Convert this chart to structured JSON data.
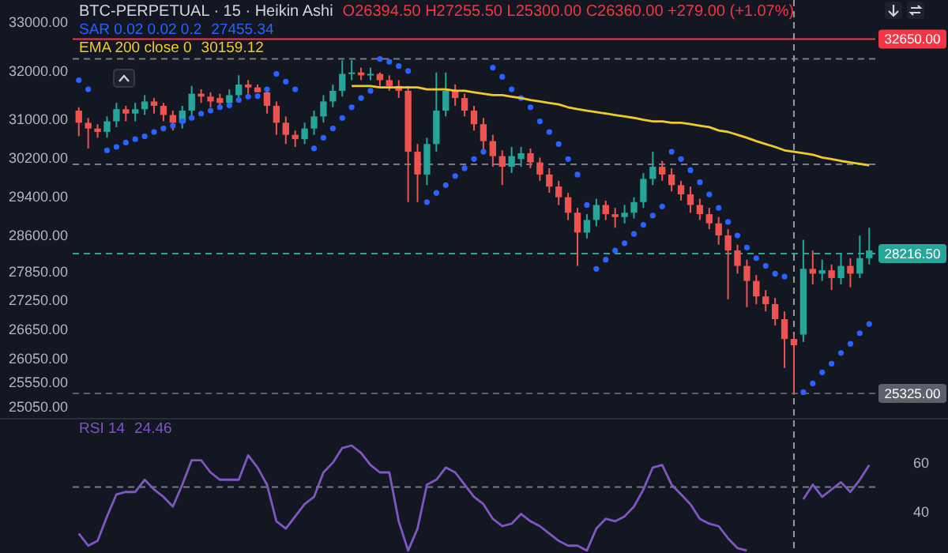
{
  "chart_data": [
    {
      "type": "candlestick",
      "title": "BTC-PERPETUAL · 15 · Heikin Ashi",
      "categories": [
        null,
        null,
        null,
        null,
        null,
        null,
        null,
        null,
        null,
        null,
        null,
        null,
        null,
        null,
        null,
        null,
        null,
        null,
        null,
        null,
        null,
        null,
        null,
        null,
        null,
        null,
        null,
        null,
        null,
        null,
        null,
        null,
        null,
        null,
        null,
        null,
        null,
        null,
        null,
        null,
        null,
        null,
        null,
        null,
        null,
        null,
        null,
        null,
        null,
        null,
        null,
        null,
        null,
        null,
        null,
        null,
        null,
        null,
        null,
        null,
        null,
        null,
        null,
        null,
        null,
        null,
        null,
        null,
        null,
        null,
        null,
        null,
        null,
        null,
        null,
        null,
        null,
        null,
        null,
        null,
        null,
        null,
        null,
        null,
        null
      ],
      "ohlc": [
        [
          31170,
          31240,
          30640,
          30920
        ],
        [
          30920,
          31020,
          30390,
          30800
        ],
        [
          30800,
          30890,
          30610,
          30730
        ],
        [
          30730,
          31050,
          30610,
          30950
        ],
        [
          30950,
          31330,
          30830,
          31200
        ],
        [
          31200,
          31270,
          30950,
          31110
        ],
        [
          31110,
          31330,
          30950,
          31200
        ],
        [
          31200,
          31490,
          31080,
          31360
        ],
        [
          31360,
          31430,
          31110,
          31270
        ],
        [
          31270,
          31330,
          30950,
          31080
        ],
        [
          31080,
          31170,
          30760,
          30920
        ],
        [
          30920,
          31270,
          30800,
          31170
        ],
        [
          31170,
          31680,
          31050,
          31520
        ],
        [
          31520,
          31610,
          31330,
          31460
        ],
        [
          31460,
          31550,
          31240,
          31360
        ],
        [
          31430,
          31520,
          31200,
          31330
        ],
        [
          31330,
          31610,
          31300,
          31490
        ],
        [
          31490,
          31900,
          31420,
          31710
        ],
        [
          31710,
          31800,
          31520,
          31650
        ],
        [
          31650,
          31710,
          31550,
          31550
        ],
        [
          31550,
          31610,
          31110,
          31270
        ],
        [
          31270,
          31360,
          30670,
          30920
        ],
        [
          30920,
          31050,
          30480,
          30670
        ],
        [
          30670,
          30760,
          30420,
          30580
        ],
        [
          30580,
          30920,
          30480,
          30800
        ],
        [
          30800,
          31170,
          30670,
          31050
        ],
        [
          31050,
          31490,
          30920,
          31360
        ],
        [
          31360,
          31710,
          31240,
          31580
        ],
        [
          31580,
          32210,
          31460,
          31930
        ],
        [
          31930,
          32210,
          31800,
          31960
        ],
        [
          31960,
          32060,
          31800,
          31900
        ],
        [
          31900,
          32060,
          31800,
          31930
        ],
        [
          31930,
          31960,
          31680,
          31800
        ],
        [
          31800,
          31900,
          31580,
          31680
        ],
        [
          31680,
          31800,
          31430,
          31580
        ],
        [
          31580,
          31680,
          29280,
          30320
        ],
        [
          30320,
          30480,
          29280,
          29850
        ],
        [
          29850,
          30610,
          29630,
          30480
        ],
        [
          30480,
          31960,
          30320,
          31170
        ],
        [
          31170,
          31960,
          31050,
          31580
        ],
        [
          31580,
          31710,
          31270,
          31430
        ],
        [
          31430,
          31520,
          31050,
          31170
        ],
        [
          31170,
          31270,
          30760,
          30890
        ],
        [
          30890,
          31020,
          30350,
          30540
        ],
        [
          30540,
          30670,
          30010,
          30230
        ],
        [
          30230,
          30350,
          29630,
          30010
        ],
        [
          30010,
          30420,
          29880,
          30230
        ],
        [
          30170,
          30420,
          30010,
          30290
        ],
        [
          30290,
          30390,
          29980,
          30100
        ],
        [
          30100,
          30200,
          29720,
          29850
        ],
        [
          29850,
          29980,
          29470,
          29600
        ],
        [
          29600,
          29720,
          29220,
          29380
        ],
        [
          29380,
          29470,
          28910,
          29060
        ],
        [
          29060,
          29160,
          27960,
          28650
        ],
        [
          28650,
          29030,
          28530,
          28910
        ],
        [
          28910,
          29350,
          28780,
          29220
        ],
        [
          29220,
          29310,
          28910,
          29030
        ],
        [
          29030,
          29160,
          28750,
          28970
        ],
        [
          28970,
          29220,
          28840,
          29060
        ],
        [
          29060,
          29380,
          28940,
          29280
        ],
        [
          29280,
          29880,
          29160,
          29760
        ],
        [
          29760,
          30320,
          29630,
          30010
        ],
        [
          30010,
          30130,
          29720,
          29850
        ],
        [
          29850,
          29980,
          29500,
          29630
        ],
        [
          29630,
          29720,
          29310,
          29440
        ],
        [
          29440,
          29600,
          29060,
          29220
        ],
        [
          29220,
          29350,
          28910,
          29030
        ],
        [
          29030,
          29160,
          28720,
          28840
        ],
        [
          28840,
          28970,
          28400,
          28590
        ],
        [
          28590,
          28720,
          27270,
          28280
        ],
        [
          28280,
          28400,
          27800,
          27960
        ],
        [
          27960,
          28090,
          27110,
          27650
        ],
        [
          27650,
          27770,
          27170,
          27330
        ],
        [
          27330,
          27460,
          27020,
          27170
        ],
        [
          27170,
          27300,
          26730,
          26860
        ],
        [
          26860,
          27020,
          25850,
          26450
        ],
        [
          26450,
          26540,
          25300,
          26320
        ],
        [
          26540,
          28500,
          26390,
          27900
        ],
        [
          27900,
          28280,
          27580,
          27800
        ],
        [
          27800,
          28090,
          27650,
          27870
        ],
        [
          27870,
          27990,
          27460,
          27710
        ],
        [
          27710,
          28210,
          27580,
          27960
        ],
        [
          27960,
          28120,
          27520,
          27800
        ],
        [
          27800,
          28590,
          27710,
          28120
        ],
        [
          28120,
          28750,
          27990,
          28280
        ]
      ],
      "colors": [
        "#ef5350",
        "#ef5350",
        "#ef5350",
        "#26a69a",
        "#26a69a",
        "#ef5350",
        "#26a69a",
        "#26a69a",
        "#ef5350",
        "#ef5350",
        "#ef5350",
        "#26a69a",
        "#26a69a",
        "#ef5350",
        "#ef5350",
        "#ef5350",
        "#26a69a",
        "#26a69a",
        "#ef5350",
        "#ef5350",
        "#ef5350",
        "#ef5350",
        "#ef5350",
        "#ef5350",
        "#26a69a",
        "#26a69a",
        "#26a69a",
        "#26a69a",
        "#26a69a",
        "#26a69a",
        "#ef5350",
        "#26a69a",
        "#ef5350",
        "#ef5350",
        "#ef5350",
        "#ef5350",
        "#ef5350",
        "#26a69a",
        "#26a69a",
        "#26a69a",
        "#ef5350",
        "#ef5350",
        "#ef5350",
        "#ef5350",
        "#ef5350",
        "#ef5350",
        "#26a69a",
        "#26a69a",
        "#ef5350",
        "#ef5350",
        "#ef5350",
        "#ef5350",
        "#ef5350",
        "#ef5350",
        "#26a69a",
        "#26a69a",
        "#ef5350",
        "#ef5350",
        "#26a69a",
        "#26a69a",
        "#26a69a",
        "#26a69a",
        "#ef5350",
        "#ef5350",
        "#ef5350",
        "#ef5350",
        "#ef5350",
        "#ef5350",
        "#ef5350",
        "#ef5350",
        "#ef5350",
        "#ef5350",
        "#ef5350",
        "#ef5350",
        "#ef5350",
        "#ef5350",
        "#ef5350",
        "#26a69a",
        "#ef5350",
        "#26a69a",
        "#ef5350",
        "#26a69a",
        "#ef5350",
        "#26a69a",
        "#26a69a"
      ],
      "series": [
        {
          "type": "scatter",
          "name": "SAR 0.02 0.02 0.2",
          "color": "#2962ff",
          "marker": "circle",
          "values": [
            31800,
            31610,
            null,
            30350,
            30420,
            30510,
            30580,
            30640,
            30730,
            30800,
            30860,
            30950,
            31020,
            31110,
            31170,
            31240,
            31280,
            31390,
            31460,
            31470,
            31610,
            31930,
            31770,
            31610,
            null,
            30390,
            30610,
            30800,
            31020,
            31240,
            31430,
            31580,
            32240,
            32180,
            32090,
            31990,
            null,
            29280,
            29470,
            29630,
            29820,
            29980,
            30170,
            30320,
            32060,
            31870,
            31610,
            31430,
            31240,
            30950,
            30730,
            30480,
            30170,
            29850,
            29220,
            27900,
            28090,
            28280,
            28430,
            28620,
            28810,
            29000,
            29190,
            30320,
            30170,
            29940,
            29690,
            29440,
            29160,
            28870,
            28590,
            28340,
            28120,
            27960,
            27800,
            27740,
            null,
            25350,
            25530,
            25760,
            25940,
            26160,
            26350,
            26570,
            26760
          ]
        },
        {
          "type": "line",
          "name": "EMA 200 close 0",
          "color": "#f0c92c",
          "values": [
            null,
            null,
            null,
            null,
            null,
            null,
            null,
            null,
            null,
            null,
            null,
            null,
            null,
            null,
            null,
            null,
            null,
            null,
            null,
            null,
            null,
            null,
            null,
            null,
            null,
            null,
            null,
            null,
            null,
            31680,
            31680,
            31680,
            31650,
            31650,
            31650,
            31650,
            31650,
            31610,
            31610,
            31610,
            31580,
            31580,
            31550,
            31520,
            31490,
            31490,
            31460,
            31430,
            31390,
            31360,
            31330,
            31300,
            31240,
            31200,
            31170,
            31140,
            31110,
            31080,
            31050,
            31020,
            30980,
            30950,
            30950,
            30920,
            30920,
            30890,
            30860,
            30830,
            30760,
            30730,
            30670,
            30610,
            30540,
            30480,
            30420,
            30350,
            30320,
            30290,
            30260,
            30200,
            30170,
            30130,
            30100,
            30070,
            30040
          ]
        }
      ],
      "ylim": [
        24900,
        33000
      ],
      "yticks": [
        {
          "value": 33000,
          "label": "33000.00"
        },
        {
          "value": 32000,
          "label": "32000.00"
        },
        {
          "value": 31000,
          "label": "31000.00"
        },
        {
          "value": 30200,
          "label": "30200.00"
        },
        {
          "value": 29400,
          "label": "29400.00"
        },
        {
          "value": 28600,
          "label": "28600.00"
        },
        {
          "value": 27850,
          "label": "27850.00"
        },
        {
          "value": 27250,
          "label": "27250.00"
        },
        {
          "value": 26650,
          "label": "26650.00"
        },
        {
          "value": 26050,
          "label": "26050.00"
        },
        {
          "value": 25550,
          "label": "25550.00"
        },
        {
          "value": 25050,
          "label": "25050.00"
        }
      ],
      "ref_lines": [
        {
          "axis": "y",
          "value": 32650,
          "label": "32650.00",
          "color": "#f23645",
          "line_style": "solid"
        },
        {
          "axis": "y",
          "value": 32240,
          "color": "#787b86",
          "line_style": "dashed"
        },
        {
          "axis": "y",
          "value": 30060,
          "color": "#787b86",
          "line_style": "dashed"
        },
        {
          "axis": "y",
          "value": 28216.5,
          "label": "28216.50",
          "color": "#26a69a",
          "line_style": "dashed"
        },
        {
          "axis": "y",
          "value": 25325,
          "label": "25325.00",
          "color": "#5d606b",
          "line_style": "dashed"
        }
      ],
      "annotations": [
        "O26394.50 H27255.50 L25300.00 C26360.00 +279.00 (+1.07%)",
        "27455.34",
        "30159.12"
      ],
      "tick_labels": "y"
    },
    {
      "type": "line",
      "categories": [
        null,
        null,
        null,
        null,
        null,
        null,
        null,
        null,
        null,
        null,
        null,
        null,
        null,
        null,
        null,
        null,
        null,
        null,
        null,
        null,
        null,
        null,
        null,
        null,
        null,
        null,
        null,
        null,
        null,
        null,
        null,
        null,
        null,
        null,
        null,
        null,
        null,
        null,
        null,
        null,
        null,
        null,
        null,
        null,
        null,
        null,
        null,
        null,
        null,
        null,
        null,
        null,
        null,
        null,
        null,
        null,
        null,
        null,
        null,
        null,
        null,
        null,
        null,
        null,
        null,
        null,
        null,
        null,
        null,
        null,
        null,
        null,
        null,
        null,
        null,
        null,
        null,
        null,
        null,
        null,
        null,
        null,
        null,
        null,
        null
      ],
      "series": [
        {
          "name": "RSI 14",
          "color": "#7e57c2",
          "values": [
            31,
            26,
            28,
            38,
            47,
            48,
            48,
            53,
            49,
            46,
            42,
            51,
            61,
            61,
            56,
            53,
            53,
            53,
            63,
            58,
            51,
            36,
            33,
            38,
            43,
            46,
            56,
            60,
            66,
            67,
            64,
            59,
            56,
            56,
            36,
            24,
            33,
            51,
            53,
            58,
            56,
            51,
            46,
            43,
            37,
            34,
            35,
            39,
            36,
            34,
            31,
            28,
            26,
            26,
            24,
            33,
            37,
            36,
            38,
            42,
            49,
            58,
            59,
            51,
            47,
            43,
            37,
            35,
            34,
            29,
            25,
            24,
            null,
            null,
            null,
            null,
            null,
            45,
            51,
            46,
            49,
            52,
            48,
            53,
            59
          ]
        }
      ],
      "ylim": [
        23,
        78
      ],
      "yticks": [
        60,
        40
      ],
      "ref_lines": [
        {
          "axis": "y",
          "value": 50,
          "color": "#787b86",
          "line_style": "dashed"
        }
      ],
      "annotations": [
        "24.46"
      ],
      "tick_labels": "y"
    }
  ]
}
